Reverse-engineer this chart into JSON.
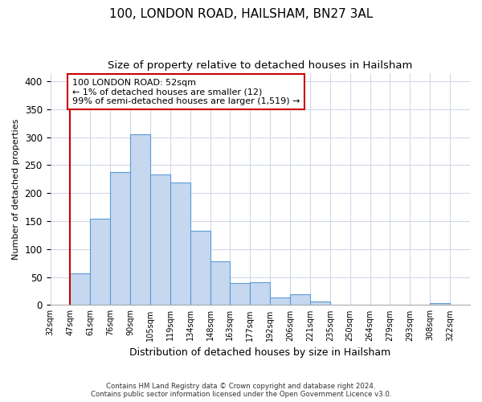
{
  "title1": "100, LONDON ROAD, HAILSHAM, BN27 3AL",
  "title2": "Size of property relative to detached houses in Hailsham",
  "xlabel": "Distribution of detached houses by size in Hailsham",
  "ylabel": "Number of detached properties",
  "bin_labels": [
    "32sqm",
    "47sqm",
    "61sqm",
    "76sqm",
    "90sqm",
    "105sqm",
    "119sqm",
    "134sqm",
    "148sqm",
    "163sqm",
    "177sqm",
    "192sqm",
    "206sqm",
    "221sqm",
    "235sqm",
    "250sqm",
    "264sqm",
    "279sqm",
    "293sqm",
    "308sqm",
    "322sqm"
  ],
  "bar_heights": [
    0,
    57,
    155,
    238,
    305,
    233,
    219,
    133,
    78,
    40,
    41,
    14,
    19,
    7,
    0,
    0,
    0,
    0,
    0,
    3,
    0
  ],
  "bar_color": "#c5d8f0",
  "bar_edge_color": "#5b9bd5",
  "annotation_box_text": "100 LONDON ROAD: 52sqm\n← 1% of detached houses are smaller (12)\n99% of semi-detached houses are larger (1,519) →",
  "annotation_line_color": "#cc0000",
  "annotation_box_edge_color": "#cc0000",
  "ylim": [
    0,
    415
  ],
  "yticks": [
    0,
    50,
    100,
    150,
    200,
    250,
    300,
    350,
    400
  ],
  "footer_line1": "Contains HM Land Registry data © Crown copyright and database right 2024.",
  "footer_line2": "Contains public sector information licensed under the Open Government Licence v3.0.",
  "background_color": "#ffffff",
  "grid_color": "#d0d8e8"
}
